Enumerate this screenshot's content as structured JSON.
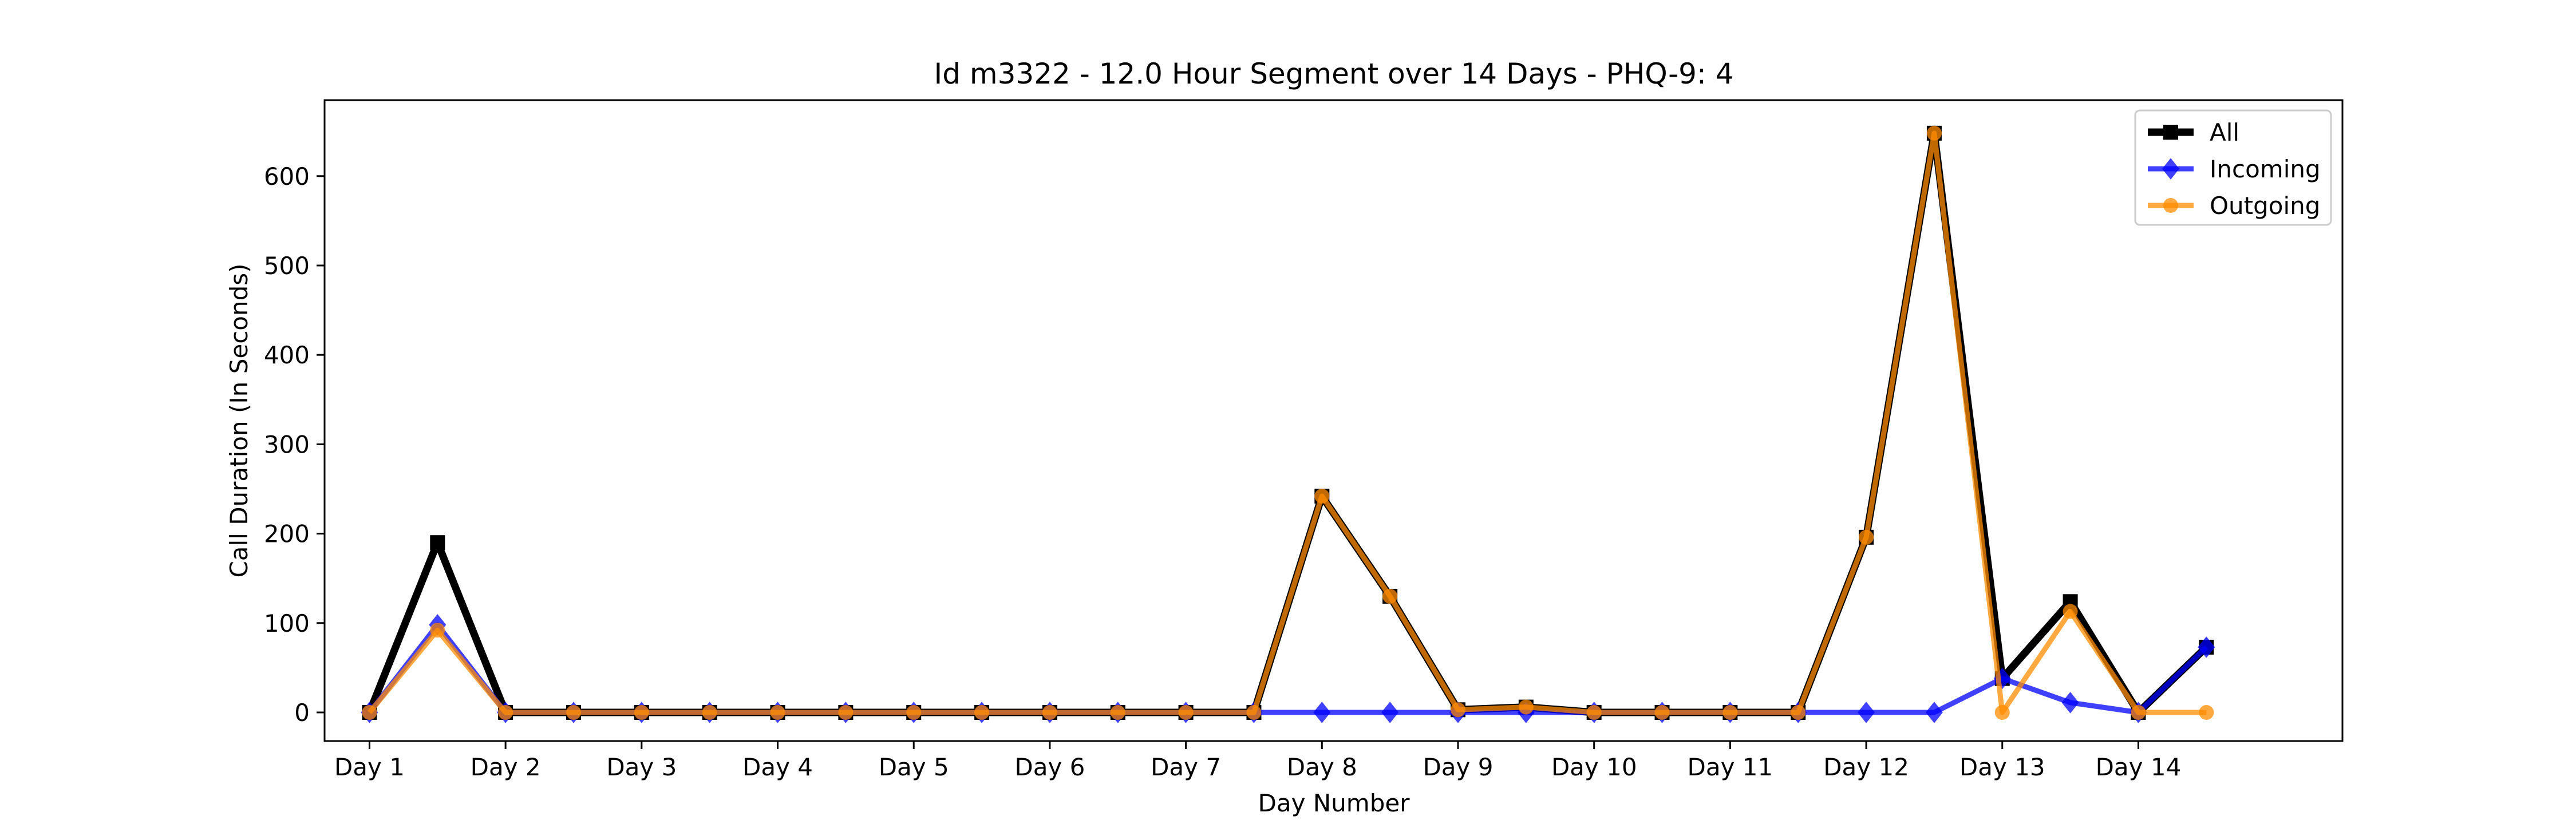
{
  "chart_data": {
    "type": "line",
    "title": "Id m3322 - 12.0 Hour Segment over 14 Days - PHQ-9: 4",
    "xlabel": "Day Number",
    "ylabel": "Call Duration (In Seconds)",
    "categories": [
      "Day 1",
      "Day 2",
      "Day 3",
      "Day 4",
      "Day 5",
      "Day 6",
      "Day 7",
      "Day 8",
      "Day 9",
      "Day 10",
      "Day 11",
      "Day 12",
      "Day 13",
      "Day 14"
    ],
    "x": [
      1,
      1.5,
      2,
      2.5,
      3,
      3.5,
      4,
      4.5,
      5,
      5.5,
      6,
      6.5,
      7,
      7.5,
      8,
      8.5,
      9,
      9.5,
      10,
      10.5,
      11,
      11.5,
      12,
      12.5,
      13,
      13.5,
      14,
      14.5
    ],
    "xlim": [
      0.67,
      15.5
    ],
    "ylim": [
      -32,
      685
    ],
    "yticks": [
      0,
      100,
      200,
      300,
      400,
      500,
      600
    ],
    "grid": false,
    "legend_position": "top-right",
    "series": [
      {
        "name": "All",
        "color": "#000000",
        "marker": "square",
        "values": [
          0,
          190,
          0,
          0,
          0,
          0,
          0,
          0,
          0,
          0,
          0,
          0,
          0,
          0,
          242,
          130,
          3,
          6,
          0,
          0,
          0,
          0,
          196,
          648,
          38,
          124,
          0,
          73
        ]
      },
      {
        "name": "Incoming",
        "color": "#0000ff",
        "marker": "diamond",
        "values": [
          0,
          98,
          0,
          0,
          0,
          0,
          0,
          0,
          0,
          0,
          0,
          0,
          0,
          0,
          0,
          0,
          0,
          0,
          0,
          0,
          0,
          0,
          0,
          0,
          38,
          11,
          0,
          73
        ]
      },
      {
        "name": "Outgoing",
        "color": "#ff8c00",
        "marker": "circle",
        "values": [
          0,
          92,
          0,
          0,
          0,
          0,
          0,
          0,
          0,
          0,
          0,
          0,
          0,
          0,
          242,
          130,
          3,
          6,
          0,
          0,
          0,
          0,
          196,
          648,
          0,
          113,
          0,
          0
        ]
      }
    ]
  }
}
